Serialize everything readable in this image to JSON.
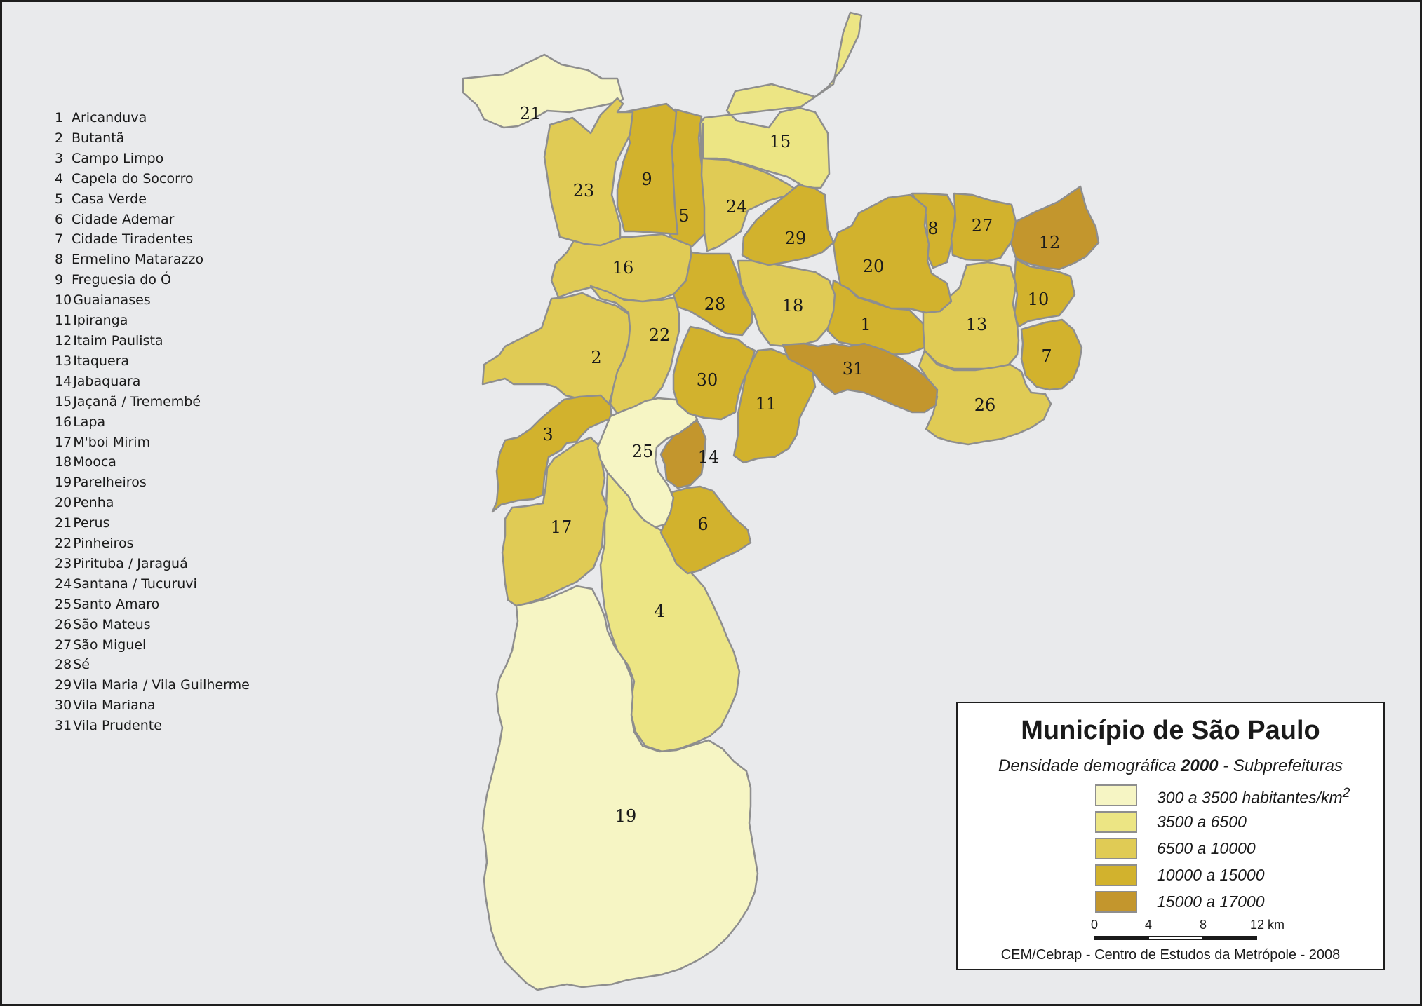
{
  "title": "Município de São Paulo",
  "subtitle": {
    "prefix": "Densidade demográfica",
    "year": "2000",
    "suffix": "- Subprefeituras"
  },
  "districts": [
    {
      "n": "1",
      "name": "Aricanduva",
      "cls": 3
    },
    {
      "n": "2",
      "name": "Butantã",
      "cls": 2
    },
    {
      "n": "3",
      "name": "Campo Limpo",
      "cls": 3
    },
    {
      "n": "4",
      "name": "Capela do Socorro",
      "cls": 1
    },
    {
      "n": "5",
      "name": "Casa Verde",
      "cls": 3
    },
    {
      "n": "6",
      "name": "Cidade Ademar",
      "cls": 3
    },
    {
      "n": "7",
      "name": "Cidade Tiradentes",
      "cls": 3
    },
    {
      "n": "8",
      "name": "Ermelino Matarazzo",
      "cls": 3
    },
    {
      "n": "9",
      "name": "Freguesia do Ó",
      "cls": 3
    },
    {
      "n": "10",
      "name": "Guaianases",
      "cls": 3
    },
    {
      "n": "11",
      "name": "Ipiranga",
      "cls": 3
    },
    {
      "n": "12",
      "name": "Itaim Paulista",
      "cls": 4
    },
    {
      "n": "13",
      "name": "Itaquera",
      "cls": 2
    },
    {
      "n": "14",
      "name": "Jabaquara",
      "cls": 4
    },
    {
      "n": "15",
      "name": "Jaçanã / Tremembé",
      "cls": 1
    },
    {
      "n": "16",
      "name": "Lapa",
      "cls": 2
    },
    {
      "n": "17",
      "name": "M'boi Mirim",
      "cls": 2
    },
    {
      "n": "18",
      "name": "Mooca",
      "cls": 2
    },
    {
      "n": "19",
      "name": "Parelheiros",
      "cls": 0
    },
    {
      "n": "20",
      "name": "Penha",
      "cls": 3
    },
    {
      "n": "21",
      "name": "Perus",
      "cls": 0
    },
    {
      "n": "22",
      "name": "Pinheiros",
      "cls": 2
    },
    {
      "n": "23",
      "name": "Pirituba / Jaraguá",
      "cls": 2
    },
    {
      "n": "24",
      "name": "Santana / Tucuruvi",
      "cls": 2
    },
    {
      "n": "25",
      "name": "Santo Amaro",
      "cls": 0
    },
    {
      "n": "26",
      "name": "São Mateus",
      "cls": 2
    },
    {
      "n": "27",
      "name": "São Miguel",
      "cls": 3
    },
    {
      "n": "28",
      "name": "Sé",
      "cls": 3
    },
    {
      "n": "29",
      "name": "Vila Maria / Vila Guilherme",
      "cls": 3
    },
    {
      "n": "30",
      "name": "Vila Mariana",
      "cls": 3
    },
    {
      "n": "31",
      "name": "Vila Prudente",
      "cls": 4
    }
  ],
  "legend": {
    "classes": [
      {
        "label": "300 a 3500 habitantes/km",
        "sup": "2",
        "color": "#f6f5c4"
      },
      {
        "label": "3500 a 6500",
        "sup": "",
        "color": "#ece584"
      },
      {
        "label": "6500 a 10000",
        "sup": "",
        "color": "#e0cb55"
      },
      {
        "label": "10000 a 15000",
        "sup": "",
        "color": "#d2b22d"
      },
      {
        "label": "15000 a 17000",
        "sup": "",
        "color": "#c3962d"
      }
    ],
    "scale": {
      "ticks": [
        "0",
        "4",
        "8",
        "12"
      ],
      "unit": "km"
    },
    "credit": "CEM/Cebrap - Centro de Estudos da Metrópole - 2008"
  },
  "colors": {
    "background": "#e9eaec",
    "border": "#8e8e8e",
    "frame": "#1e1e1e"
  }
}
